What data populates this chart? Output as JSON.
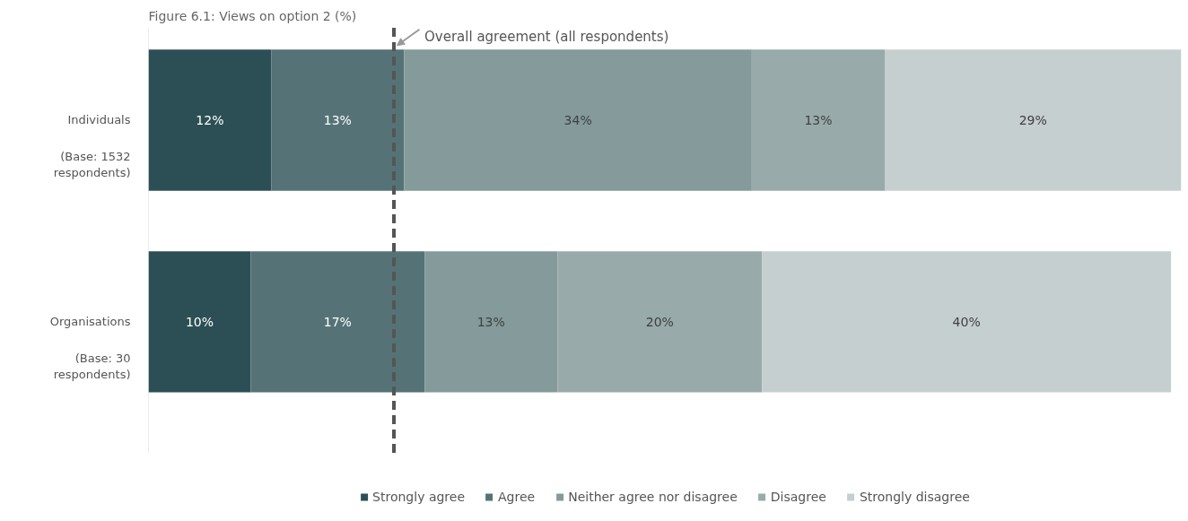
{
  "chart_data": {
    "type": "bar",
    "orientation": "horizontal",
    "stacked": true,
    "title": "Figure 6.1: Views on option 2 (%)",
    "categories": [
      "Individuals",
      "Organisations"
    ],
    "annotations": [
      "(Base: 1532 respondents)",
      "(Base: 30 respondents)"
    ],
    "series": [
      {
        "name": "Strongly agree",
        "color": "#2c4f55",
        "values": [
          12,
          10
        ],
        "value_labels": [
          "12%",
          "10%"
        ]
      },
      {
        "name": "Agree",
        "color": "#557377",
        "values": [
          13,
          17
        ],
        "value_labels": [
          "13%",
          "17%"
        ]
      },
      {
        "name": "Neither agree nor disagree",
        "color": "#849a9b",
        "values": [
          34,
          13
        ],
        "value_labels": [
          "34%",
          "13%"
        ]
      },
      {
        "name": "Disagree",
        "color": "#99aaab",
        "values": [
          13,
          20
        ],
        "value_labels": [
          "13%",
          "20%"
        ]
      },
      {
        "name": "Strongly disagree",
        "color": "#c5cfcf",
        "values": [
          29,
          40
        ],
        "value_labels": [
          "29%",
          "40%"
        ]
      }
    ],
    "tick_labels": "y",
    "legend": "bottom",
    "ref_lines": [
      {
        "axis": "x",
        "value": 24,
        "label": "Overall agreement (all respondents)",
        "color": "#555555",
        "line_style": "dashed"
      }
    ]
  }
}
